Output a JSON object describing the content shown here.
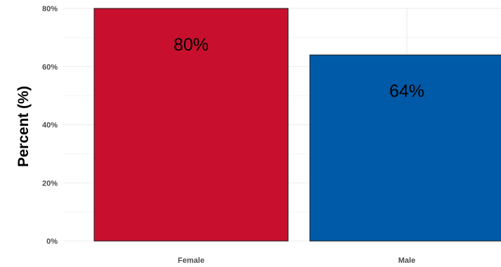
{
  "chart_data": {
    "type": "bar",
    "title": "",
    "xlabel": "",
    "ylabel": "Percent (%)",
    "categories": [
      "Female",
      "Male"
    ],
    "values": [
      80,
      64
    ],
    "value_labels": [
      "80%",
      "64%"
    ],
    "bar_colors": [
      "#c8102e",
      "#005aa8"
    ],
    "bar_outline_color": "#1a1a1a",
    "ylim": [
      0,
      80
    ],
    "y_ticks": [
      0,
      20,
      40,
      60,
      80
    ],
    "y_tick_labels": [
      "0%",
      "20%",
      "40%",
      "60%",
      "80%"
    ],
    "grid": true,
    "grid_color": "#ebebeb",
    "legend": "none"
  }
}
